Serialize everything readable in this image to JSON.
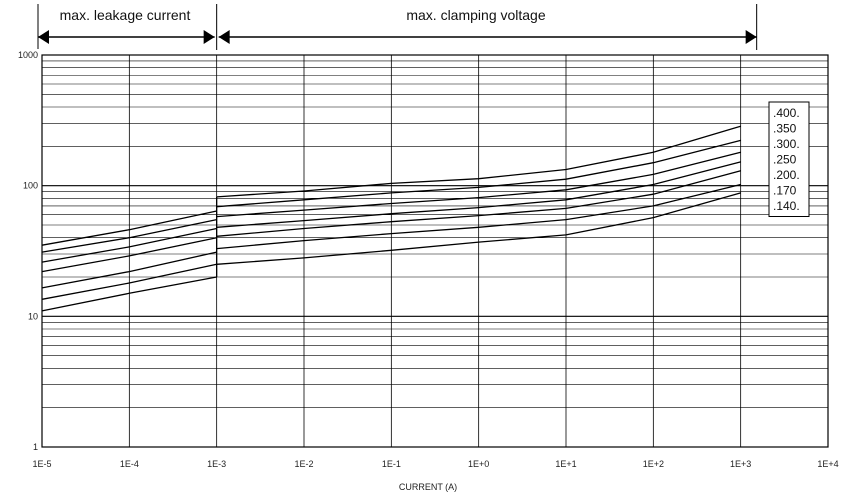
{
  "chart_data": {
    "type": "line",
    "title": "",
    "xlabel": "CURRENT (A)",
    "ylabel": "",
    "x_scale": "log",
    "y_scale": "log",
    "xlim": [
      1e-05,
      10000.0
    ],
    "ylim": [
      1,
      1000
    ],
    "x_tick_labels": [
      "1E-5",
      "1E-4",
      "1E-3",
      "1E-2",
      "1E-1",
      "1E+0",
      "1E+1",
      "1E+2",
      "1E+3",
      "1E+4"
    ],
    "y_tick_labels": [
      "1",
      "10",
      "100",
      "1000"
    ],
    "grid": true,
    "regions": [
      {
        "label": "max. leakage current",
        "x_start": 1e-05,
        "x_end": 0.001
      },
      {
        "label": "max. clamping voltage",
        "x_start": 0.001,
        "x_end": 1000.0
      }
    ],
    "legend_placement": "right",
    "series": [
      {
        "name": ".400.",
        "leakage": [
          [
            1e-05,
            35
          ],
          [
            0.0001,
            46
          ],
          [
            0.001,
            64
          ]
        ],
        "clamping": [
          [
            0.001,
            82
          ],
          [
            0.01,
            91
          ],
          [
            0.1,
            104
          ],
          [
            1.0,
            113
          ],
          [
            10.0,
            133
          ],
          [
            100.0,
            180
          ],
          [
            1000.0,
            285
          ]
        ]
      },
      {
        "name": ".350",
        "leakage": [
          [
            1e-05,
            31
          ],
          [
            0.0001,
            40
          ],
          [
            0.001,
            55
          ]
        ],
        "clamping": [
          [
            0.001,
            69
          ],
          [
            0.01,
            78
          ],
          [
            0.1,
            88
          ],
          [
            1.0,
            97
          ],
          [
            10.0,
            112
          ],
          [
            100.0,
            150
          ],
          [
            1000.0,
            222
          ]
        ]
      },
      {
        "name": ".300.",
        "leakage": [
          [
            1e-05,
            26
          ],
          [
            0.0001,
            34
          ],
          [
            0.001,
            47
          ]
        ],
        "clamping": [
          [
            0.001,
            58
          ],
          [
            0.01,
            65
          ],
          [
            0.1,
            73
          ],
          [
            1.0,
            81
          ],
          [
            10.0,
            93
          ],
          [
            100.0,
            122
          ],
          [
            1000.0,
            180
          ]
        ]
      },
      {
        "name": ".250",
        "leakage": [
          [
            1e-05,
            22
          ],
          [
            0.0001,
            29
          ],
          [
            0.001,
            40
          ]
        ],
        "clamping": [
          [
            0.001,
            48
          ],
          [
            0.01,
            54
          ],
          [
            0.1,
            61
          ],
          [
            1.0,
            68
          ],
          [
            10.0,
            78
          ],
          [
            100.0,
            102
          ],
          [
            1000.0,
            152
          ]
        ]
      },
      {
        "name": ".200.",
        "leakage": [
          [
            1e-05,
            16.5
          ],
          [
            0.0001,
            22
          ],
          [
            0.001,
            31
          ]
        ],
        "clamping": [
          [
            0.001,
            41
          ],
          [
            0.01,
            47
          ],
          [
            0.1,
            53
          ],
          [
            1.0,
            59
          ],
          [
            10.0,
            67
          ],
          [
            100.0,
            86
          ],
          [
            1000.0,
            130
          ]
        ]
      },
      {
        "name": ".170",
        "leakage": [
          [
            1e-05,
            13.5
          ],
          [
            0.0001,
            18
          ],
          [
            0.001,
            25
          ]
        ],
        "clamping": [
          [
            0.001,
            33
          ],
          [
            0.01,
            38
          ],
          [
            0.1,
            43
          ],
          [
            1.0,
            48
          ],
          [
            10.0,
            55
          ],
          [
            100.0,
            70
          ],
          [
            1000.0,
            102
          ]
        ]
      },
      {
        "name": ".140.",
        "leakage": [
          [
            1e-05,
            11
          ],
          [
            0.0001,
            15
          ],
          [
            0.001,
            20
          ]
        ],
        "clamping": [
          [
            0.001,
            25
          ],
          [
            0.01,
            28
          ],
          [
            0.1,
            32
          ],
          [
            1.0,
            37
          ],
          [
            10.0,
            42
          ],
          [
            100.0,
            57
          ],
          [
            1000.0,
            88
          ]
        ]
      }
    ]
  }
}
